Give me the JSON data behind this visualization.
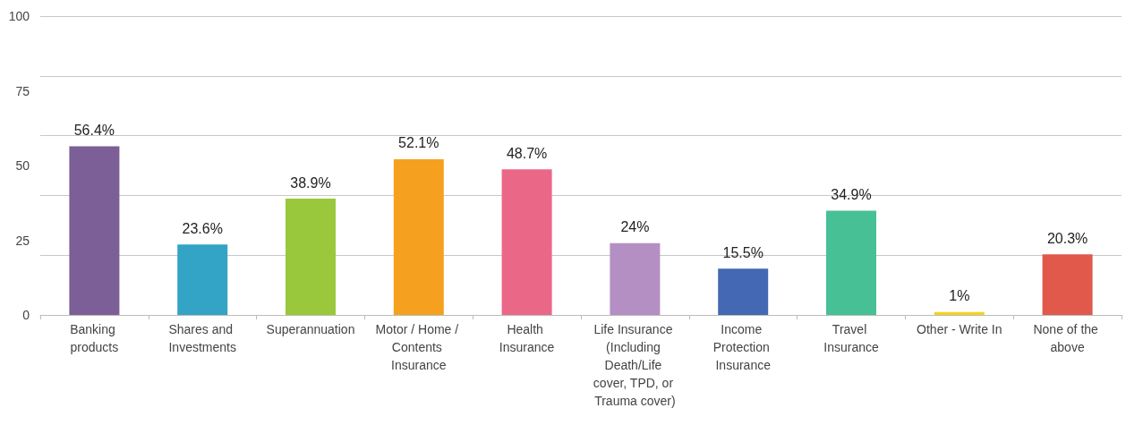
{
  "chart_data": {
    "type": "bar",
    "categories": [
      "Banking products",
      "Shares and Investments",
      "Superannuation",
      "Motor / Home / Contents Insurance",
      "Health Insurance",
      "Life Insurance (Including Death/Life cover, TPD, or Trauma cover)",
      "Income Protection Insurance",
      "Travel Insurance",
      "Other - Write In",
      "None of the above"
    ],
    "values": [
      56.4,
      23.6,
      38.9,
      52.1,
      48.7,
      24,
      15.5,
      34.9,
      1,
      20.3
    ],
    "value_labels": [
      "56.4%",
      "23.6%",
      "38.9%",
      "52.1%",
      "48.7%",
      "24%",
      "15.5%",
      "34.9%",
      "1%",
      "20.3%"
    ],
    "colors": [
      "#7b5f96",
      "#33a3c6",
      "#99c83d",
      "#f5a11f",
      "#eb6788",
      "#b48fc3",
      "#4468b3",
      "#47c095",
      "#f4d21f",
      "#e0594b"
    ],
    "ylim": [
      0,
      100
    ],
    "yticks": [
      0,
      25,
      50,
      75,
      100
    ],
    "grid": "y"
  }
}
